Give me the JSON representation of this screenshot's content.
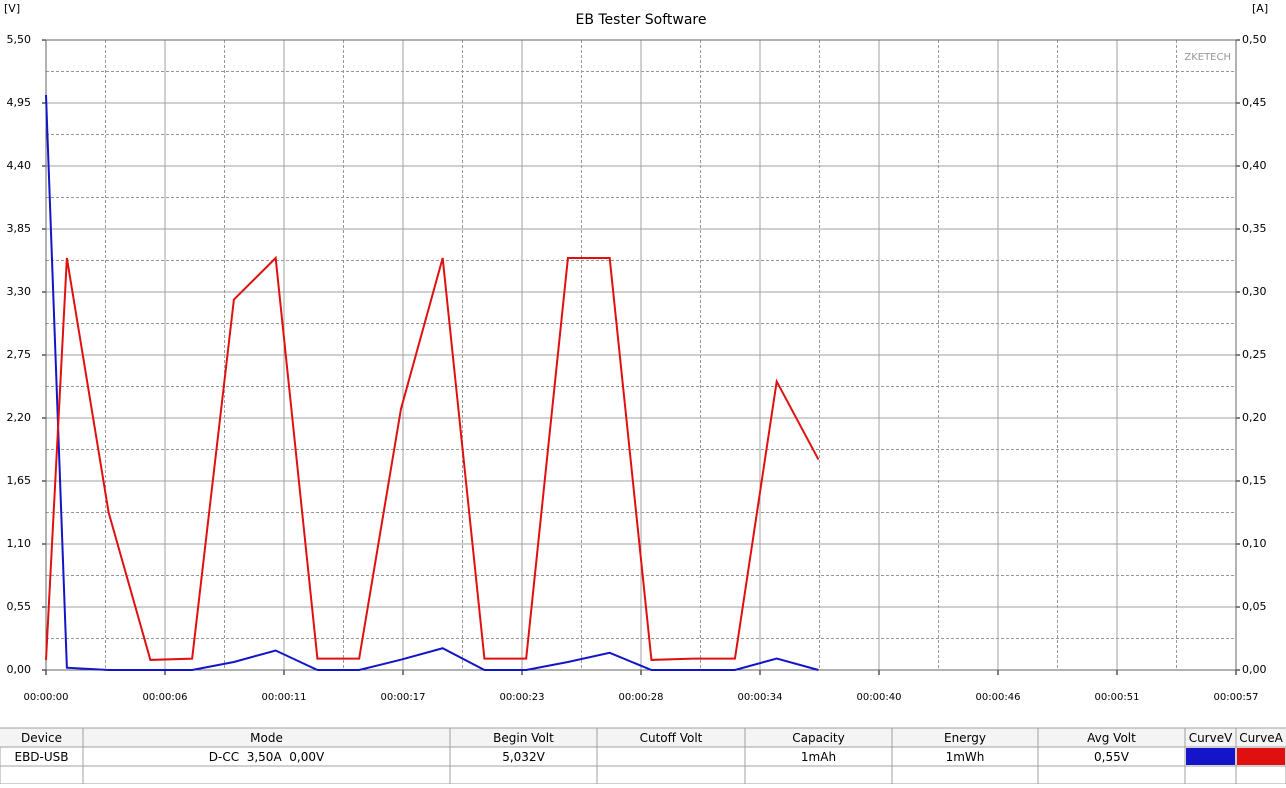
{
  "chart_data": {
    "type": "line",
    "title": "EB Tester Software",
    "y_label": "[V]",
    "y2_label": "[A]",
    "watermark": "ZKETECH",
    "x": [
      0,
      1,
      3,
      5,
      7,
      9,
      11,
      13,
      15,
      17,
      19,
      21,
      23,
      25,
      27,
      29,
      31,
      33,
      35,
      37
    ],
    "series": [
      {
        "name": "CurveV",
        "color": "#1414c8",
        "axis": "y",
        "values": [
          5.02,
          0.02,
          0,
          0,
          0,
          0.07,
          0.17,
          0,
          0,
          0.09,
          0.19,
          0,
          0,
          0.07,
          0.15,
          0,
          0,
          0,
          0.1,
          0
        ]
      },
      {
        "name": "CurveA",
        "color": "#e01010",
        "axis": "y2",
        "values": [
          0.008,
          0.327,
          0.125,
          0.008,
          0.009,
          0.294,
          0.327,
          0.009,
          0.009,
          0.207,
          0.327,
          0.009,
          0.009,
          0.327,
          0.327,
          0.008,
          0.009,
          0.009,
          0.229,
          0.167
        ]
      }
    ],
    "xlim": [
      0,
      57
    ],
    "xticks": [
      {
        "value": 0,
        "label": "00:00:00"
      },
      {
        "value": 5.7,
        "label": "00:00:06"
      },
      {
        "value": 11.4,
        "label": "00:00:11"
      },
      {
        "value": 17.1,
        "label": "00:00:17"
      },
      {
        "value": 22.8,
        "label": "00:00:23"
      },
      {
        "value": 28.5,
        "label": "00:00:28"
      },
      {
        "value": 34.2,
        "label": "00:00:34"
      },
      {
        "value": 39.9,
        "label": "00:00:40"
      },
      {
        "value": 45.6,
        "label": "00:00:46"
      },
      {
        "value": 51.3,
        "label": "00:00:51"
      },
      {
        "value": 57,
        "label": "00:00:57"
      }
    ],
    "ylim": [
      0,
      5.5
    ],
    "yticks": [
      {
        "value": 0,
        "label": "0,00"
      },
      {
        "value": 0.55,
        "label": "0,55"
      },
      {
        "value": 1.1,
        "label": "1,10"
      },
      {
        "value": 1.65,
        "label": "1,65"
      },
      {
        "value": 2.2,
        "label": "2,20"
      },
      {
        "value": 2.75,
        "label": "2,75"
      },
      {
        "value": 3.3,
        "label": "3,30"
      },
      {
        "value": 3.85,
        "label": "3,85"
      },
      {
        "value": 4.4,
        "label": "4,40"
      },
      {
        "value": 4.95,
        "label": "4,95"
      },
      {
        "value": 5.5,
        "label": "5,50"
      }
    ],
    "y2lim": [
      0,
      0.5
    ],
    "y2ticks": [
      {
        "value": 0,
        "label": "0,00"
      },
      {
        "value": 0.05,
        "label": "0,05"
      },
      {
        "value": 0.1,
        "label": "0,10"
      },
      {
        "value": 0.15,
        "label": "0,15"
      },
      {
        "value": 0.2,
        "label": "0,20"
      },
      {
        "value": 0.25,
        "label": "0,25"
      },
      {
        "value": 0.3,
        "label": "0,30"
      },
      {
        "value": 0.35,
        "label": "0,35"
      },
      {
        "value": 0.4,
        "label": "0,40"
      },
      {
        "value": 0.45,
        "label": "0,45"
      },
      {
        "value": 0.5,
        "label": "0,50"
      }
    ],
    "grid": true,
    "minor_grid": true
  },
  "table": {
    "headers": [
      "Device",
      "Mode",
      "Begin Volt",
      "Cutoff Volt",
      "Capacity",
      "Energy",
      "Avg Volt",
      "CurveV",
      "CurveA"
    ],
    "rows": [
      [
        "EBD-USB",
        "D-CC  3,50A  0,00V",
        "5,032V",
        null,
        "1mAh",
        "1mWh",
        "0,55V"
      ]
    ]
  }
}
